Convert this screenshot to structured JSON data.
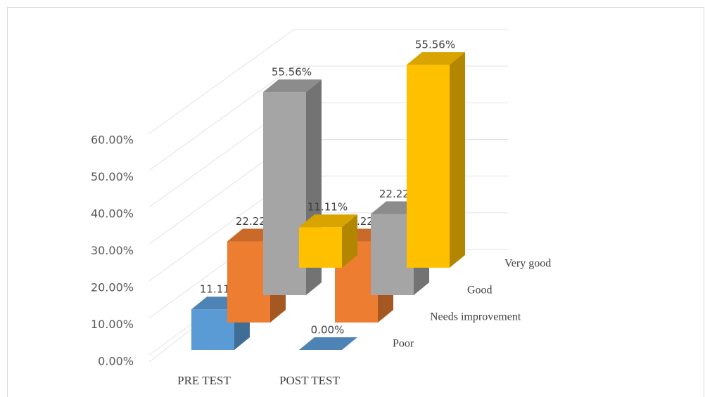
{
  "chart_data": {
    "type": "bar3d",
    "categories": [
      "PRE TEST",
      "POST TEST"
    ],
    "series": [
      {
        "name": "Poor",
        "color": "#5b9bd5",
        "values": [
          11.11,
          0.0
        ],
        "value_labels": [
          "11.11%",
          "0.00%"
        ]
      },
      {
        "name": "Needs improvement",
        "color": "#ed7d31",
        "values": [
          22.22,
          22.22
        ],
        "value_labels": [
          "22.22%",
          "22.22%"
        ]
      },
      {
        "name": "Good",
        "color": "#a5a5a5",
        "values": [
          55.56,
          22.22
        ],
        "value_labels": [
          "55.56%",
          "22.22%"
        ]
      },
      {
        "name": "Very good",
        "color": "#ffc000",
        "values": [
          11.11,
          55.56
        ],
        "value_labels": [
          "11.11%",
          "55.56%"
        ]
      }
    ],
    "ylim": [
      0,
      60
    ],
    "yticks": [
      {
        "value": 0,
        "label": "0.00%"
      },
      {
        "value": 10,
        "label": "10.00%"
      },
      {
        "value": 20,
        "label": "20.00%"
      },
      {
        "value": 30,
        "label": "30.00%"
      },
      {
        "value": 40,
        "label": "40.00%"
      },
      {
        "value": 50,
        "label": "50.00%"
      },
      {
        "value": 60,
        "label": "60.00%"
      }
    ],
    "grid": true
  }
}
